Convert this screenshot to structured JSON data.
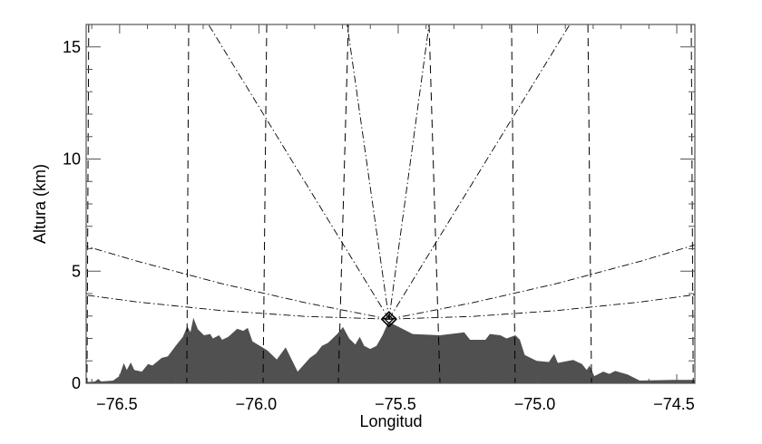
{
  "chart_data": {
    "type": "area",
    "title": "",
    "xlabel": "Longitud",
    "ylabel": "Altura (km)",
    "xlim": [
      -76.62,
      -74.435
    ],
    "ylim": [
      0,
      16
    ],
    "grid": false,
    "xticks": [
      -76.5,
      -76.0,
      -75.5,
      -75.0,
      -74.5
    ],
    "xtick_labels": [
      "−76.5",
      "−76.0",
      "−75.5",
      "−75.0",
      "−74.5"
    ],
    "yticks": [
      0,
      5,
      10,
      15
    ],
    "ytick_labels": [
      "0",
      "5",
      "10",
      "15"
    ],
    "colors": {
      "terrain": "#505050",
      "lines": "#000000",
      "axes": "#555555"
    },
    "radar": {
      "lon": -75.533,
      "alt": 2.86,
      "marker": "diamond-cross"
    },
    "terrain": [
      [
        -76.62,
        0.05
      ],
      [
        -76.588,
        0.08
      ],
      [
        -76.577,
        0.19
      ],
      [
        -76.566,
        0.08
      ],
      [
        -76.523,
        0.12
      ],
      [
        -76.501,
        0.32
      ],
      [
        -76.485,
        0.9
      ],
      [
        -76.474,
        0.59
      ],
      [
        -76.46,
        0.93
      ],
      [
        -76.447,
        0.59
      ],
      [
        -76.42,
        0.52
      ],
      [
        -76.398,
        0.86
      ],
      [
        -76.382,
        0.79
      ],
      [
        -76.349,
        1.13
      ],
      [
        -76.327,
        1.2
      ],
      [
        -76.295,
        1.73
      ],
      [
        -76.273,
        2.07
      ],
      [
        -76.257,
        2.54
      ],
      [
        -76.246,
        2.27
      ],
      [
        -76.235,
        2.92
      ],
      [
        -76.219,
        2.41
      ],
      [
        -76.197,
        2.14
      ],
      [
        -76.175,
        2.2
      ],
      [
        -76.165,
        2.0
      ],
      [
        -76.143,
        2.14
      ],
      [
        -76.132,
        1.94
      ],
      [
        -76.11,
        2.07
      ],
      [
        -76.078,
        2.43
      ],
      [
        -76.056,
        2.34
      ],
      [
        -76.04,
        2.47
      ],
      [
        -76.023,
        1.87
      ],
      [
        -75.996,
        1.67
      ],
      [
        -75.969,
        1.46
      ],
      [
        -75.936,
        1.06
      ],
      [
        -75.904,
        1.6
      ],
      [
        -75.861,
        0.52
      ],
      [
        -75.817,
        1.13
      ],
      [
        -75.795,
        1.33
      ],
      [
        -75.774,
        1.67
      ],
      [
        -75.752,
        1.8
      ],
      [
        -75.719,
        2.2
      ],
      [
        -75.698,
        2.51
      ],
      [
        -75.676,
        2.0
      ],
      [
        -75.654,
        1.73
      ],
      [
        -75.638,
        2.07
      ],
      [
        -75.622,
        1.67
      ],
      [
        -75.6,
        1.53
      ],
      [
        -75.578,
        1.67
      ],
      [
        -75.556,
        2.14
      ],
      [
        -75.535,
        2.74
      ],
      [
        -75.524,
        2.67
      ],
      [
        -75.491,
        2.47
      ],
      [
        -75.448,
        2.2
      ],
      [
        -75.35,
        2.14
      ],
      [
        -75.263,
        2.27
      ],
      [
        -75.242,
        1.94
      ],
      [
        -75.187,
        1.94
      ],
      [
        -75.171,
        2.2
      ],
      [
        -75.133,
        2.14
      ],
      [
        -75.111,
        2.0
      ],
      [
        -75.079,
        2.14
      ],
      [
        -75.063,
        1.94
      ],
      [
        -75.046,
        1.26
      ],
      [
        -75.003,
        1.0
      ],
      [
        -74.959,
        0.95
      ],
      [
        -74.94,
        1.3
      ],
      [
        -74.927,
        0.91
      ],
      [
        -74.872,
        1.04
      ],
      [
        -74.84,
        0.86
      ],
      [
        -74.823,
        0.59
      ],
      [
        -74.813,
        0.79
      ],
      [
        -74.796,
        0.32
      ],
      [
        -74.764,
        0.52
      ],
      [
        -74.742,
        0.42
      ],
      [
        -74.721,
        0.55
      ],
      [
        -74.677,
        0.39
      ],
      [
        -74.633,
        0.12
      ],
      [
        -74.514,
        0.15
      ],
      [
        -74.435,
        0.15
      ]
    ],
    "dashed_lines": [
      [
        [
          -76.611,
          16
        ],
        [
          -76.617,
          0
        ]
      ],
      [
        [
          -76.252,
          16
        ],
        [
          -76.259,
          0
        ]
      ],
      [
        [
          -75.972,
          16
        ],
        [
          -75.985,
          0
        ]
      ],
      [
        [
          -75.679,
          16
        ],
        [
          -75.715,
          0
        ]
      ],
      [
        [
          -75.389,
          16
        ],
        [
          -75.35,
          0
        ]
      ],
      [
        [
          -75.093,
          16
        ],
        [
          -75.08,
          0
        ]
      ],
      [
        [
          -74.819,
          16
        ],
        [
          -74.806,
          0
        ]
      ],
      [
        [
          -74.448,
          16
        ],
        [
          -74.441,
          0
        ]
      ]
    ],
    "dashdot_lines": [
      [
        [
          -75.533,
          2.86
        ],
        [
          -76.181,
          16
        ]
      ],
      [
        [
          -75.533,
          2.86
        ],
        [
          -75.683,
          16
        ]
      ],
      [
        [
          -75.533,
          2.86
        ],
        [
          -75.389,
          16
        ]
      ],
      [
        [
          -75.533,
          2.86
        ],
        [
          -74.884,
          16
        ]
      ],
      [
        [
          -75.533,
          2.86
        ],
        [
          -75.833,
          2.98
        ],
        [
          -76.133,
          3.24
        ],
        [
          -76.433,
          3.62
        ],
        [
          -76.62,
          3.93
        ]
      ],
      [
        [
          -75.533,
          2.86
        ],
        [
          -75.833,
          3.59
        ],
        [
          -76.133,
          4.44
        ],
        [
          -76.433,
          5.43
        ],
        [
          -76.62,
          6.11
        ]
      ],
      [
        [
          -75.533,
          2.86
        ],
        [
          -75.233,
          2.98
        ],
        [
          -74.933,
          3.24
        ],
        [
          -74.633,
          3.62
        ],
        [
          -74.435,
          3.95
        ]
      ],
      [
        [
          -75.533,
          2.86
        ],
        [
          -75.233,
          3.59
        ],
        [
          -74.933,
          4.44
        ],
        [
          -74.633,
          5.43
        ],
        [
          -74.435,
          6.17
        ]
      ]
    ]
  }
}
